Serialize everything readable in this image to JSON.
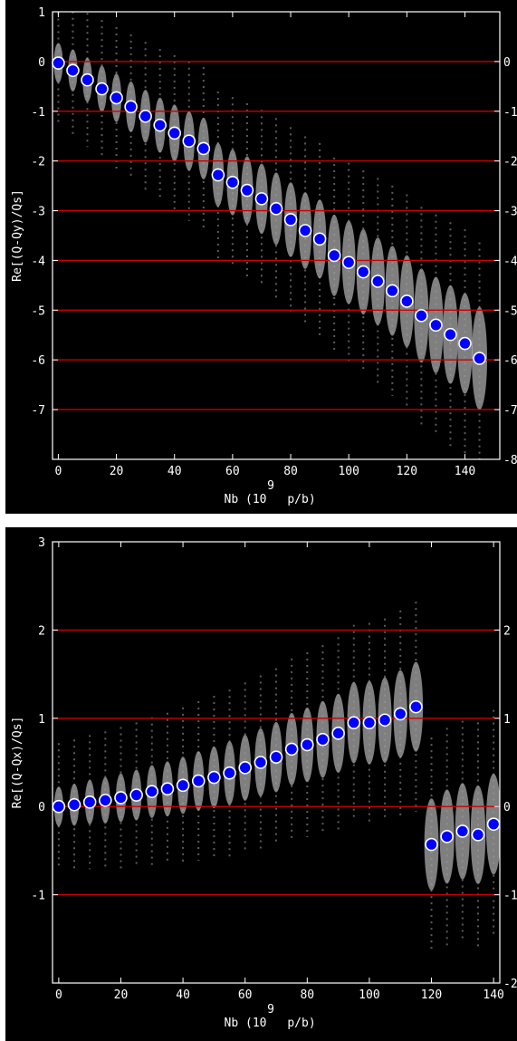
{
  "chart_data": [
    {
      "type": "scatter",
      "title": "",
      "xlabel": "Nb (10 p/b)",
      "xlabel_base": "Nb (10",
      "xlabel_exponent": "9",
      "xlabel_unit": "p/b)",
      "ylabel": "Re[(Q-Qy)/Qs]",
      "xlim": [
        -2,
        152
      ],
      "ylim": [
        -8,
        1
      ],
      "xticks": [
        "0",
        "20",
        "40",
        "60",
        "80",
        "100",
        "120",
        "140"
      ],
      "xtick_values": [
        0,
        20,
        40,
        60,
        80,
        100,
        120,
        140
      ],
      "yticks_left": [
        "1",
        "0",
        "-1",
        "-2",
        "-3",
        "-4",
        "-5",
        "-6",
        "-7"
      ],
      "yticks_left_values": [
        1,
        0,
        -1,
        -2,
        -3,
        -4,
        -5,
        -6,
        -7
      ],
      "yticks_right": [
        "0",
        "-1",
        "-2",
        "-3",
        "-4",
        "-5",
        "-6",
        "-7",
        "-8"
      ],
      "yticks_right_values": [
        0,
        -1,
        -2,
        -3,
        -4,
        -5,
        -6,
        -7,
        -8
      ],
      "hlines": [
        0,
        -1,
        -2,
        -3,
        -4,
        -5,
        -6,
        -7
      ],
      "grid": false,
      "colors": {
        "background": "#000000",
        "axes": "#ffffff",
        "hline": "#cc0000",
        "marker_fill": "#0000ff",
        "marker_edge": "#ffffff",
        "spectrum": "#e8e8e8"
      },
      "series": [
        {
          "x": [
            0,
            5,
            10,
            15,
            20,
            25,
            30,
            35,
            40,
            45,
            50,
            55,
            60,
            65,
            70,
            75,
            80,
            85,
            90,
            95,
            100,
            105,
            110,
            115,
            120,
            125,
            130,
            135,
            140,
            145
          ],
          "y": [
            -0.03,
            -0.18,
            -0.37,
            -0.55,
            -0.73,
            -0.91,
            -1.1,
            -1.28,
            -1.44,
            -1.6,
            -1.75,
            -2.28,
            -2.43,
            -2.59,
            -2.76,
            -2.96,
            -3.18,
            -3.4,
            -3.57,
            -3.9,
            -4.04,
            -4.23,
            -4.42,
            -4.61,
            -4.82,
            -5.11,
            -5.3,
            -5.49,
            -5.67,
            -5.97
          ]
        }
      ]
    },
    {
      "type": "scatter",
      "title": "",
      "xlabel": "Nb (10 p/b)",
      "xlabel_base": "Nb (10",
      "xlabel_exponent": "9",
      "xlabel_unit": "p/b)",
      "ylabel": "Re[(Q-Qx)/Qs]",
      "xlim": [
        -2,
        142
      ],
      "ylim": [
        -2,
        3
      ],
      "xticks": [
        "0",
        "20",
        "40",
        "60",
        "80",
        "100",
        "120",
        "140"
      ],
      "xtick_values": [
        0,
        20,
        40,
        60,
        80,
        100,
        120,
        140
      ],
      "yticks_left": [
        "3",
        "2",
        "1",
        "0",
        "-1"
      ],
      "yticks_left_values": [
        3,
        2,
        1,
        0,
        -1
      ],
      "yticks_right": [
        "2",
        "1",
        "0",
        "-1",
        "-2"
      ],
      "yticks_right_values": [
        2,
        1,
        0,
        -1,
        -2
      ],
      "hlines": [
        2,
        1,
        0,
        -1
      ],
      "grid": false,
      "colors": {
        "background": "#000000",
        "axes": "#ffffff",
        "hline": "#cc0000",
        "marker_fill": "#0000ff",
        "marker_edge": "#ffffff",
        "spectrum": "#e8e8e8"
      },
      "series": [
        {
          "x": [
            0,
            5,
            10,
            15,
            20,
            25,
            30,
            35,
            40,
            45,
            50,
            55,
            60,
            65,
            70,
            75,
            80,
            85,
            90,
            95,
            100,
            105,
            110,
            115,
            120,
            125,
            130,
            135,
            140
          ],
          "y": [
            0.0,
            0.02,
            0.05,
            0.07,
            0.1,
            0.13,
            0.17,
            0.2,
            0.24,
            0.29,
            0.33,
            0.38,
            0.44,
            0.5,
            0.56,
            0.65,
            0.7,
            0.76,
            0.83,
            0.95,
            0.95,
            0.98,
            1.05,
            1.13,
            -0.43,
            -0.34,
            -0.28,
            -0.32,
            -0.2
          ]
        }
      ]
    }
  ]
}
